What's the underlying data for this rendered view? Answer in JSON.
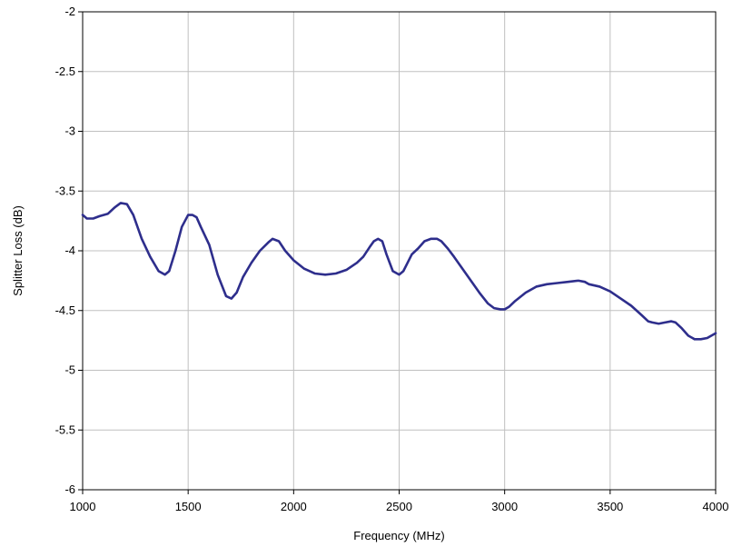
{
  "chart_data": {
    "type": "line",
    "title": "",
    "xlabel": "Frequency (MHz)",
    "ylabel": "Splitter Loss (dB)",
    "xlim": [
      1000,
      4000
    ],
    "ylim": [
      -6,
      -2
    ],
    "xticks": [
      1000,
      1500,
      2000,
      2500,
      3000,
      3500,
      4000
    ],
    "yticks": [
      -2,
      -2.5,
      -3,
      -3.5,
      -4,
      -4.5,
      -5,
      -5.5,
      -6
    ],
    "xtick_labels": [
      "1000",
      "1500",
      "2000",
      "2500",
      "3000",
      "3500",
      "4000"
    ],
    "ytick_labels": [
      "-2",
      "-2.5",
      "-3",
      "-3.5",
      "-4",
      "-4.5",
      "-5",
      "-5.5",
      "-6"
    ],
    "grid": true,
    "legend": "none",
    "series": [
      {
        "color": "#2e2e8c",
        "x": [
          1000,
          1020,
          1050,
          1080,
          1120,
          1150,
          1180,
          1210,
          1240,
          1280,
          1320,
          1360,
          1390,
          1410,
          1440,
          1470,
          1500,
          1520,
          1540,
          1560,
          1600,
          1640,
          1680,
          1705,
          1730,
          1760,
          1800,
          1840,
          1880,
          1900,
          1930,
          1960,
          2000,
          2050,
          2100,
          2150,
          2200,
          2250,
          2300,
          2330,
          2360,
          2380,
          2400,
          2420,
          2440,
          2470,
          2500,
          2520,
          2540,
          2560,
          2590,
          2620,
          2650,
          2680,
          2700,
          2730,
          2760,
          2800,
          2840,
          2880,
          2920,
          2950,
          2980,
          3000,
          3020,
          3050,
          3100,
          3150,
          3200,
          3250,
          3300,
          3350,
          3380,
          3400,
          3450,
          3500,
          3550,
          3600,
          3650,
          3680,
          3700,
          3730,
          3760,
          3790,
          3810,
          3840,
          3870,
          3900,
          3930,
          3960,
          4000
        ],
        "y": [
          -3.7,
          -3.73,
          -3.73,
          -3.71,
          -3.69,
          -3.64,
          -3.6,
          -3.61,
          -3.7,
          -3.9,
          -4.05,
          -4.17,
          -4.2,
          -4.17,
          -4.0,
          -3.8,
          -3.7,
          -3.7,
          -3.72,
          -3.8,
          -3.95,
          -4.2,
          -4.38,
          -4.4,
          -4.35,
          -4.22,
          -4.1,
          -4.0,
          -3.93,
          -3.9,
          -3.92,
          -4.0,
          -4.08,
          -4.15,
          -4.19,
          -4.2,
          -4.19,
          -4.16,
          -4.1,
          -4.05,
          -3.97,
          -3.92,
          -3.9,
          -3.92,
          -4.03,
          -4.17,
          -4.2,
          -4.17,
          -4.1,
          -4.03,
          -3.98,
          -3.92,
          -3.9,
          -3.9,
          -3.92,
          -3.98,
          -4.05,
          -4.15,
          -4.25,
          -4.35,
          -4.44,
          -4.48,
          -4.49,
          -4.49,
          -4.47,
          -4.42,
          -4.35,
          -4.3,
          -4.28,
          -4.27,
          -4.26,
          -4.25,
          -4.26,
          -4.28,
          -4.3,
          -4.34,
          -4.4,
          -4.46,
          -4.54,
          -4.59,
          -4.6,
          -4.61,
          -4.6,
          -4.59,
          -4.6,
          -4.65,
          -4.71,
          -4.74,
          -4.74,
          -4.73,
          -4.69
        ]
      }
    ]
  }
}
